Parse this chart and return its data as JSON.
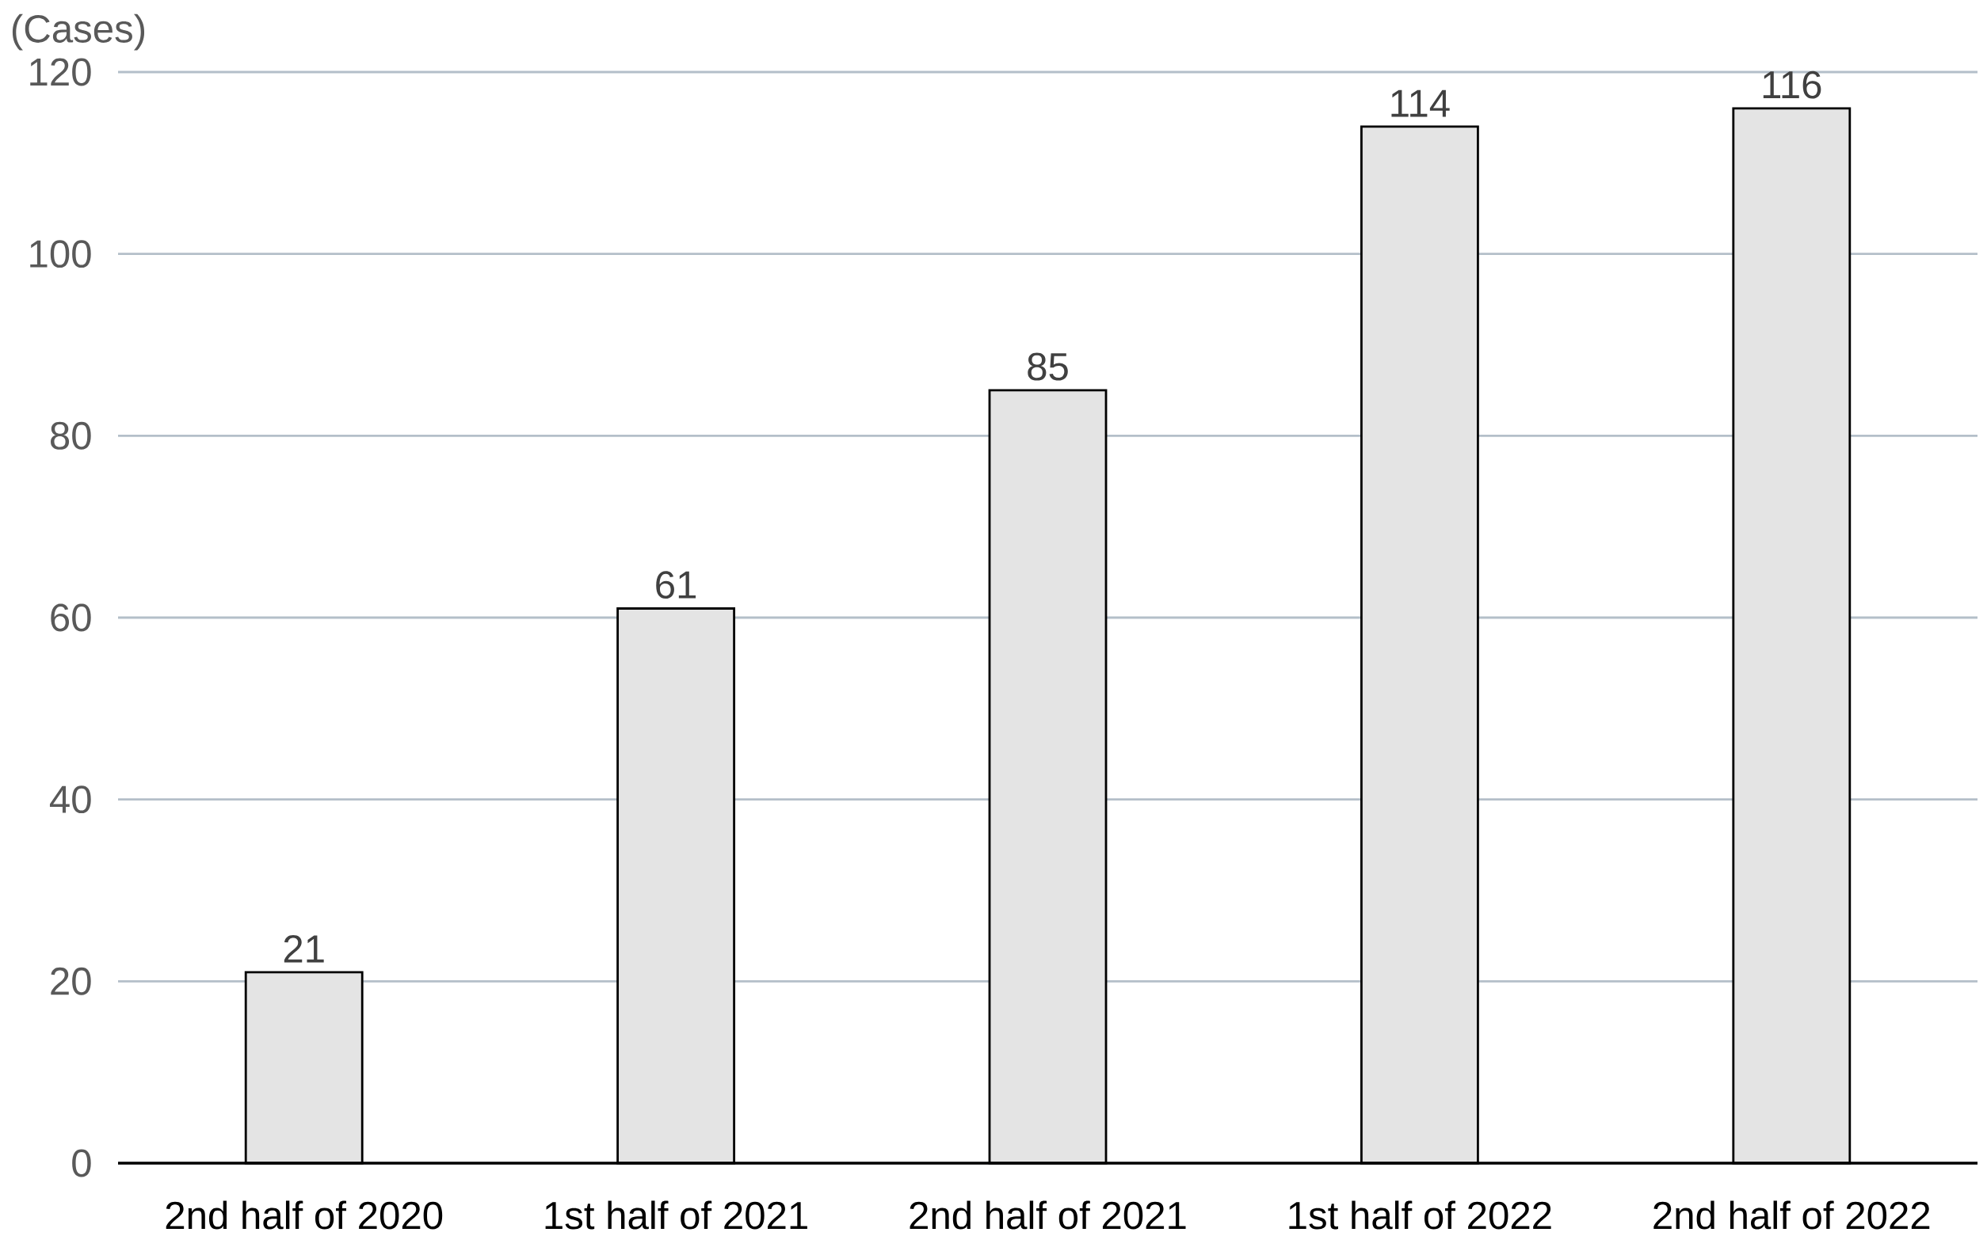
{
  "chart_data": {
    "type": "bar",
    "ylabel": "(Cases)",
    "categories": [
      "2nd half of 2020",
      "1st half of 2021",
      "2nd half of 2021",
      "1st half of 2022",
      "2nd half of 2022"
    ],
    "values": [
      21,
      61,
      85,
      114,
      116
    ],
    "color": "#e4e4e4",
    "value_labels": [
      "21",
      "61",
      "85",
      "114",
      "116"
    ],
    "ylim": [
      0,
      120
    ],
    "yticks": [
      0,
      20,
      40,
      60,
      80,
      100,
      120
    ],
    "grid": "y"
  }
}
